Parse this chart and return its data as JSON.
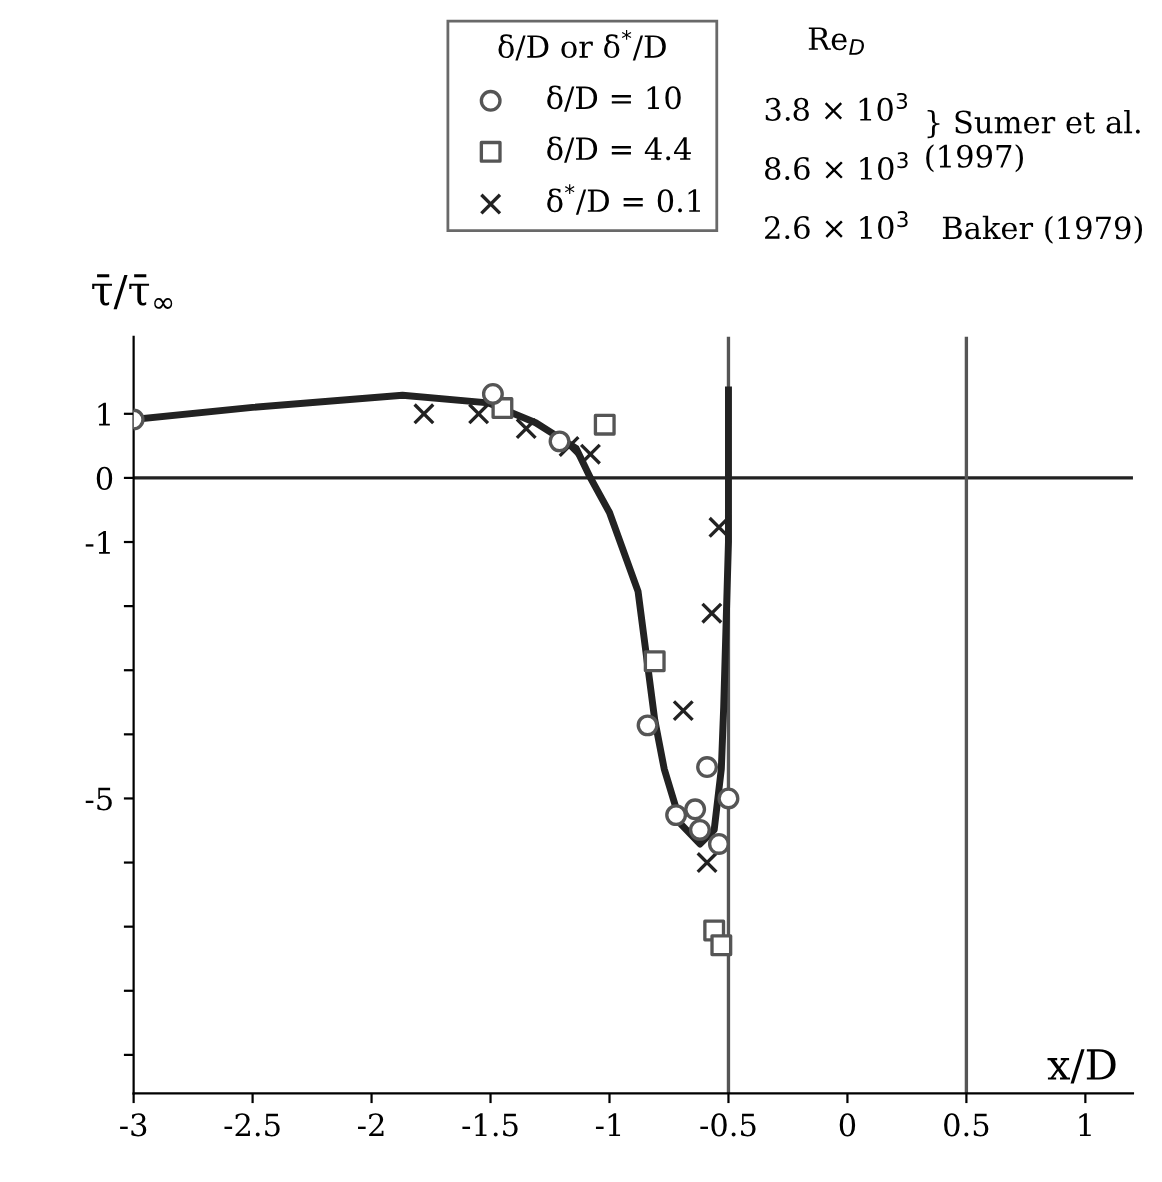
{
  "chart_data": {
    "type": "scatter",
    "xlabel": "x/D",
    "ylabel": "τ̄/τ̄$_{∞}$",
    "xlim": [
      -3,
      1.2
    ],
    "ylim": [
      -9.6,
      2.2
    ],
    "xticks": [
      -3,
      -2.5,
      -2,
      -1.5,
      -1,
      -0.5,
      0,
      0.5,
      1
    ],
    "yticks": [
      1,
      0,
      -1,
      {
        "value": -2,
        "label": null
      },
      {
        "value": -3,
        "label": null
      },
      {
        "value": -4,
        "label": null
      },
      -5,
      {
        "value": -6,
        "label": null
      },
      {
        "value": -7,
        "label": null
      },
      {
        "value": -8,
        "label": null
      },
      {
        "value": -9,
        "label": null
      }
    ],
    "grid": false,
    "legend": "top right",
    "legend_title": "δ/D or δ$^{*}$/D",
    "ref_lines": [
      {
        "axis": "y",
        "value": 0,
        "label": null,
        "color": "#222222",
        "line_style": "solid"
      },
      {
        "axis": "x",
        "value": -0.5,
        "label": null,
        "color": "#555555",
        "line_style": "solid"
      },
      {
        "axis": "x",
        "value": 0.5,
        "label": null,
        "color": "#555555",
        "line_style": "solid"
      }
    ],
    "annotations": [
      "Re$_{D}$",
      "3.8 × 10$^{3}$",
      "8.6 × 10$^{3}$",
      "2.6 × 10$^{3}$",
      "} Sumer et al. (1997)",
      "Baker (1979)"
    ],
    "series": [
      {
        "type": "line",
        "color": "#222222",
        "line_style": "solid",
        "marker": "none",
        "x": [
          -3,
          -2.5,
          -1.87,
          -1.51,
          -1.31,
          -1.14,
          -1.08,
          -1.0,
          -0.88,
          -0.81,
          -0.77,
          -0.7,
          -0.62,
          -0.56,
          -0.53,
          -0.52,
          -0.5,
          -0.5
        ],
        "values": [
          0.91,
          1.1,
          1.29,
          1.17,
          0.86,
          0.46,
          0,
          -0.54,
          -1.77,
          -3.77,
          -4.54,
          -5.4,
          -5.71,
          -5.49,
          -4.54,
          -3.57,
          -1.0,
          1.37
        ]
      },
      {
        "name": "δ/D = 10",
        "marker": "circle",
        "color": "#555555",
        "x": [
          -3,
          -1.49,
          -1.21,
          -0.84,
          -0.59,
          -0.5,
          -0.72,
          -0.64,
          -0.62,
          -0.54
        ],
        "values": [
          0.91,
          1.31,
          0.57,
          -3.86,
          -4.51,
          -5.0,
          -5.26,
          -5.17,
          -5.49,
          -5.71
        ]
      },
      {
        "name": "δ/D = 4.4",
        "type": "scatter",
        "marker": "square",
        "color": "#555555",
        "x": [
          -1.45,
          -1.02,
          -0.81,
          -0.56,
          -0.53
        ],
        "values": [
          1.09,
          0.83,
          -2.86,
          -7.06,
          -7.29
        ]
      },
      {
        "name": "δ$^{*}$/D = 0.1",
        "type": "scatter",
        "marker": "cross",
        "color": "#222222",
        "x": [
          -1.78,
          -1.55,
          -1.35,
          -1.17,
          -1.08,
          -0.54,
          -0.57,
          -0.69,
          -0.59
        ],
        "values": [
          1.0,
          1.0,
          0.77,
          0.49,
          0.37,
          -0.77,
          -2.11,
          -3.63,
          -6.0
        ]
      }
    ]
  }
}
